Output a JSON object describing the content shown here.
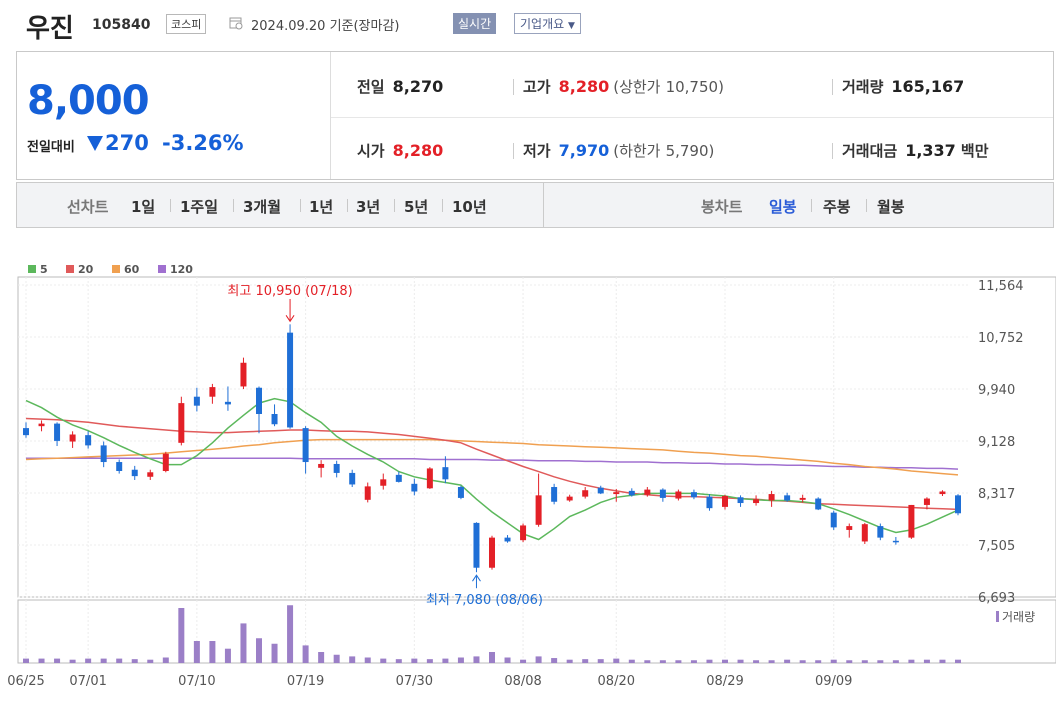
{
  "header": {
    "name": "우진",
    "code": "105840",
    "market": "코스피",
    "date": "2024.09.20 기준(장마감)",
    "realtime": "실시간",
    "company": "기업개요"
  },
  "price": {
    "current": "8,000",
    "change_label": "전일대비",
    "change_amount": "270",
    "change_rate": "-3.26%"
  },
  "info": {
    "prev_label": "전일",
    "prev": "8,270",
    "high_label": "고가",
    "high": "8,280",
    "upper_label": "(상한가",
    "upper": "10,750)",
    "volume_label": "거래량",
    "volume": "165,167",
    "open_label": "시가",
    "open": "8,280",
    "low_label": "저가",
    "low": "7,970",
    "lower_label": "(하한가",
    "lower": "5,790)",
    "amount_label": "거래대금",
    "amount": "1,337",
    "amount_unit": "백만"
  },
  "tabs": {
    "line_label": "선차트",
    "periods": [
      "1일",
      "1주일",
      "3개월",
      "1년",
      "3년",
      "5년",
      "10년"
    ],
    "candle_label": "봉차트",
    "candles": [
      "일봉",
      "주봉",
      "월봉"
    ],
    "active": "일봉"
  },
  "colors": {
    "up": "#e32027",
    "down": "#1f6fd6",
    "ma5": "#5cb85c",
    "ma20": "#e05a5a",
    "ma60": "#f0a050",
    "ma120": "#a070d0",
    "volume": "#9b7fc7"
  },
  "chart_data": {
    "type": "candlestick",
    "legend": [
      "5",
      "20",
      "60",
      "120"
    ],
    "ylim": [
      6693,
      11564
    ],
    "yticks": [
      "11,564",
      "10,752",
      "9,940",
      "9,128",
      "8,317",
      "7,505",
      "6,693"
    ],
    "xticks": [
      {
        "label": "06/25",
        "i": 0
      },
      {
        "label": "07/01",
        "i": 4
      },
      {
        "label": "07/10",
        "i": 11
      },
      {
        "label": "07/19",
        "i": 18
      },
      {
        "label": "07/30",
        "i": 25
      },
      {
        "label": "08/08",
        "i": 32
      },
      {
        "label": "08/20",
        "i": 38
      },
      {
        "label": "08/29",
        "i": 45
      },
      {
        "label": "09/09",
        "i": 52
      }
    ],
    "annotations": {
      "high": {
        "text": "최고 10,950 (07/18)",
        "i": 17,
        "value": 10950
      },
      "low": {
        "text": "최저 7,080 (08/06)",
        "i": 29,
        "value": 7080
      }
    },
    "volume_label": "거래량",
    "candles": [
      {
        "o": 9330,
        "h": 9420,
        "l": 9180,
        "c": 9220,
        "v": 0.08
      },
      {
        "o": 9360,
        "h": 9450,
        "l": 9280,
        "c": 9400,
        "v": 0.08
      },
      {
        "o": 9400,
        "h": 9420,
        "l": 9050,
        "c": 9130,
        "v": 0.08
      },
      {
        "o": 9120,
        "h": 9280,
        "l": 9020,
        "c": 9230,
        "v": 0.06
      },
      {
        "o": 9220,
        "h": 9280,
        "l": 9010,
        "c": 9060,
        "v": 0.08
      },
      {
        "o": 9060,
        "h": 9120,
        "l": 8720,
        "c": 8800,
        "v": 0.08
      },
      {
        "o": 8800,
        "h": 8840,
        "l": 8620,
        "c": 8660,
        "v": 0.08
      },
      {
        "o": 8680,
        "h": 8740,
        "l": 8520,
        "c": 8580,
        "v": 0.07
      },
      {
        "o": 8570,
        "h": 8680,
        "l": 8520,
        "c": 8640,
        "v": 0.06
      },
      {
        "o": 8660,
        "h": 8960,
        "l": 8640,
        "c": 8930,
        "v": 0.1
      },
      {
        "o": 9100,
        "h": 9820,
        "l": 9060,
        "c": 9720,
        "v": 1.0
      },
      {
        "o": 9820,
        "h": 9960,
        "l": 9590,
        "c": 9680,
        "v": 0.4
      },
      {
        "o": 9820,
        "h": 10020,
        "l": 9710,
        "c": 9970,
        "v": 0.4
      },
      {
        "o": 9740,
        "h": 9980,
        "l": 9600,
        "c": 9700,
        "v": 0.26
      },
      {
        "o": 9980,
        "h": 10430,
        "l": 9940,
        "c": 10350,
        "v": 0.72
      },
      {
        "o": 9960,
        "h": 9980,
        "l": 9250,
        "c": 9550,
        "v": 0.45
      },
      {
        "o": 9550,
        "h": 9700,
        "l": 9360,
        "c": 9390,
        "v": 0.35
      },
      {
        "o": 10820,
        "h": 10950,
        "l": 9320,
        "c": 9340,
        "v": 1.05
      },
      {
        "o": 9330,
        "h": 9360,
        "l": 8620,
        "c": 8800,
        "v": 0.32
      },
      {
        "o": 8710,
        "h": 8830,
        "l": 8560,
        "c": 8770,
        "v": 0.2
      },
      {
        "o": 8770,
        "h": 8820,
        "l": 8560,
        "c": 8630,
        "v": 0.15
      },
      {
        "o": 8630,
        "h": 8680,
        "l": 8410,
        "c": 8450,
        "v": 0.12
      },
      {
        "o": 8210,
        "h": 8480,
        "l": 8170,
        "c": 8420,
        "v": 0.1
      },
      {
        "o": 8430,
        "h": 8620,
        "l": 8370,
        "c": 8530,
        "v": 0.08
      },
      {
        "o": 8600,
        "h": 8650,
        "l": 8480,
        "c": 8490,
        "v": 0.07
      },
      {
        "o": 8460,
        "h": 8540,
        "l": 8280,
        "c": 8340,
        "v": 0.08
      },
      {
        "o": 8390,
        "h": 8720,
        "l": 8380,
        "c": 8700,
        "v": 0.07
      },
      {
        "o": 8720,
        "h": 8890,
        "l": 8470,
        "c": 8530,
        "v": 0.08
      },
      {
        "o": 8410,
        "h": 8430,
        "l": 8220,
        "c": 8240,
        "v": 0.1
      },
      {
        "o": 7850,
        "h": 7860,
        "l": 7080,
        "c": 7150,
        "v": 0.12
      },
      {
        "o": 7150,
        "h": 7650,
        "l": 7120,
        "c": 7620,
        "v": 0.2
      },
      {
        "o": 7620,
        "h": 7660,
        "l": 7540,
        "c": 7560,
        "v": 0.1
      },
      {
        "o": 7580,
        "h": 7840,
        "l": 7550,
        "c": 7810,
        "v": 0.06
      },
      {
        "o": 7820,
        "h": 8620,
        "l": 7790,
        "c": 8280,
        "v": 0.12
      },
      {
        "o": 8410,
        "h": 8460,
        "l": 8140,
        "c": 8180,
        "v": 0.09
      },
      {
        "o": 8200,
        "h": 8290,
        "l": 8180,
        "c": 8260,
        "v": 0.06
      },
      {
        "o": 8260,
        "h": 8410,
        "l": 8230,
        "c": 8360,
        "v": 0.07
      },
      {
        "o": 8400,
        "h": 8430,
        "l": 8300,
        "c": 8310,
        "v": 0.07
      },
      {
        "o": 8300,
        "h": 8380,
        "l": 8180,
        "c": 8330,
        "v": 0.08
      },
      {
        "o": 8350,
        "h": 8390,
        "l": 8260,
        "c": 8280,
        "v": 0.06
      },
      {
        "o": 8290,
        "h": 8410,
        "l": 8260,
        "c": 8370,
        "v": 0.05
      },
      {
        "o": 8370,
        "h": 8390,
        "l": 8180,
        "c": 8240,
        "v": 0.05
      },
      {
        "o": 8230,
        "h": 8370,
        "l": 8200,
        "c": 8340,
        "v": 0.05
      },
      {
        "o": 8330,
        "h": 8370,
        "l": 8220,
        "c": 8250,
        "v": 0.05
      },
      {
        "o": 8260,
        "h": 8300,
        "l": 8040,
        "c": 8080,
        "v": 0.06
      },
      {
        "o": 8100,
        "h": 8290,
        "l": 8060,
        "c": 8270,
        "v": 0.06
      },
      {
        "o": 8250,
        "h": 8280,
        "l": 8100,
        "c": 8160,
        "v": 0.06
      },
      {
        "o": 8160,
        "h": 8280,
        "l": 8120,
        "c": 8220,
        "v": 0.05
      },
      {
        "o": 8200,
        "h": 8350,
        "l": 8100,
        "c": 8300,
        "v": 0.05
      },
      {
        "o": 8280,
        "h": 8320,
        "l": 8180,
        "c": 8200,
        "v": 0.06
      },
      {
        "o": 8210,
        "h": 8290,
        "l": 8170,
        "c": 8240,
        "v": 0.05
      },
      {
        "o": 8230,
        "h": 8250,
        "l": 8050,
        "c": 8060,
        "v": 0.05
      },
      {
        "o": 8010,
        "h": 8040,
        "l": 7740,
        "c": 7780,
        "v": 0.06
      },
      {
        "o": 7740,
        "h": 7840,
        "l": 7620,
        "c": 7800,
        "v": 0.05
      },
      {
        "o": 7560,
        "h": 7850,
        "l": 7520,
        "c": 7830,
        "v": 0.05
      },
      {
        "o": 7800,
        "h": 7840,
        "l": 7580,
        "c": 7620,
        "v": 0.05
      },
      {
        "o": 7570,
        "h": 7630,
        "l": 7510,
        "c": 7550,
        "v": 0.05
      },
      {
        "o": 7620,
        "h": 8130,
        "l": 7600,
        "c": 8130,
        "v": 0.06
      },
      {
        "o": 8130,
        "h": 8250,
        "l": 8060,
        "c": 8230,
        "v": 0.06
      },
      {
        "o": 8300,
        "h": 8360,
        "l": 8270,
        "c": 8340,
        "v": 0.06
      },
      {
        "o": 8280,
        "h": 8300,
        "l": 7970,
        "c": 8000,
        "v": 0.06
      }
    ],
    "ma5": [
      9760,
      9650,
      9500,
      9380,
      9290,
      9180,
      9060,
      8950,
      8850,
      8760,
      8760,
      8900,
      9100,
      9330,
      9530,
      9720,
      9790,
      9740,
      9570,
      9420,
      9200,
      9050,
      8920,
      8800,
      8650,
      8570,
      8520,
      8480,
      8440,
      8220,
      8020,
      7850,
      7680,
      7590,
      7760,
      7950,
      8050,
      8170,
      8250,
      8280,
      8310,
      8310,
      8310,
      8310,
      8290,
      8270,
      8230,
      8210,
      8200,
      8200,
      8180,
      8150,
      8070,
      7980,
      7880,
      7780,
      7700,
      7740,
      7830,
      7940,
      8050
    ],
    "ma20": [
      9480,
      9470,
      9460,
      9440,
      9420,
      9390,
      9360,
      9340,
      9320,
      9300,
      9280,
      9270,
      9260,
      9260,
      9270,
      9280,
      9290,
      9300,
      9300,
      9290,
      9280,
      9280,
      9270,
      9250,
      9230,
      9200,
      9170,
      9140,
      9100,
      9000,
      8910,
      8820,
      8730,
      8650,
      8570,
      8500,
      8440,
      8390,
      8350,
      8310,
      8290,
      8270,
      8260,
      8260,
      8250,
      8240,
      8230,
      8220,
      8200,
      8190,
      8170,
      8150,
      8140,
      8130,
      8120,
      8110,
      8100,
      8090,
      8080,
      8070,
      8060
    ],
    "ma60": [
      8840,
      8850,
      8860,
      8870,
      8880,
      8890,
      8900,
      8910,
      8920,
      8940,
      8960,
      8980,
      9000,
      9020,
      9050,
      9070,
      9100,
      9120,
      9140,
      9150,
      9150,
      9150,
      9150,
      9150,
      9150,
      9150,
      9150,
      9140,
      9130,
      9120,
      9110,
      9100,
      9090,
      9070,
      9060,
      9050,
      9040,
      9030,
      9020,
      9010,
      9000,
      8990,
      8970,
      8950,
      8940,
      8920,
      8900,
      8890,
      8870,
      8850,
      8830,
      8810,
      8780,
      8760,
      8730,
      8710,
      8690,
      8660,
      8640,
      8620,
      8600
    ],
    "ma120": [
      8860,
      8860,
      8860,
      8860,
      8860,
      8860,
      8860,
      8860,
      8860,
      8860,
      8860,
      8860,
      8860,
      8860,
      8860,
      8860,
      8860,
      8860,
      8850,
      8850,
      8850,
      8850,
      8850,
      8850,
      8850,
      8850,
      8840,
      8840,
      8840,
      8840,
      8830,
      8830,
      8830,
      8820,
      8820,
      8820,
      8810,
      8810,
      8800,
      8800,
      8800,
      8790,
      8790,
      8780,
      8780,
      8770,
      8770,
      8760,
      8760,
      8750,
      8750,
      8740,
      8730,
      8730,
      8720,
      8720,
      8710,
      8710,
      8700,
      8700,
      8690
    ]
  }
}
